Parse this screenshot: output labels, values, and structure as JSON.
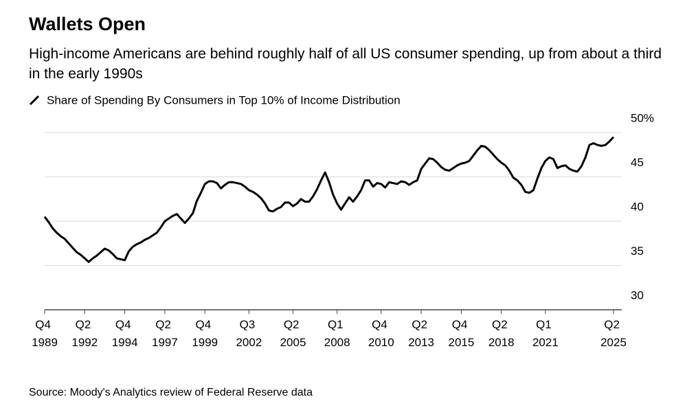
{
  "chart_data": {
    "type": "line",
    "title": "Wallets Open",
    "subtitle": "High-income Americans are behind roughly half of all US consumer spending, up from about a third in the early 1990s",
    "source": "Source: Moody's Analytics review of Federal Reserve data",
    "categories": [
      "Q4 1989",
      null,
      null,
      null,
      null,
      null,
      null,
      null,
      null,
      null,
      "Q2 1992",
      null,
      null,
      null,
      null,
      null,
      null,
      null,
      null,
      null,
      "Q4 1994",
      null,
      null,
      null,
      null,
      null,
      null,
      null,
      null,
      null,
      "Q2 1997",
      null,
      null,
      null,
      null,
      null,
      null,
      null,
      null,
      null,
      "Q4 1999",
      null,
      null,
      null,
      null,
      null,
      null,
      null,
      null,
      null,
      null,
      "Q3 2002",
      null,
      null,
      null,
      null,
      null,
      null,
      null,
      null,
      null,
      null,
      "Q2 2005",
      null,
      null,
      null,
      null,
      null,
      null,
      null,
      null,
      null,
      null,
      "Q1 2008",
      null,
      null,
      null,
      null,
      null,
      null,
      null,
      null,
      null,
      null,
      "Q4 2010",
      null,
      null,
      null,
      null,
      null,
      null,
      null,
      null,
      null,
      "Q2 2013",
      null,
      null,
      null,
      null,
      null,
      null,
      null,
      null,
      null,
      "Q4 2015",
      null,
      null,
      null,
      null,
      null,
      null,
      null,
      null,
      null,
      "Q2 2018",
      null,
      null,
      null,
      null,
      null,
      null,
      null,
      null,
      null,
      null,
      "Q1 2021",
      null,
      null,
      null,
      null,
      null,
      null,
      null,
      null,
      null,
      null,
      null,
      null,
      null,
      null,
      null,
      null,
      "Q2 2025"
    ],
    "series": [
      {
        "name": "Share of Spending By Consumers in Top 10% of Income Distribution",
        "color": "#000000",
        "values": [
          40.5,
          39.9,
          39.2,
          38.7,
          38.3,
          38.0,
          37.5,
          37.0,
          36.5,
          36.2,
          35.8,
          35.4,
          35.8,
          36.1,
          36.5,
          36.9,
          36.7,
          36.3,
          35.8,
          35.7,
          35.6,
          36.6,
          37.1,
          37.4,
          37.6,
          37.9,
          38.1,
          38.4,
          38.7,
          39.3,
          40.0,
          40.3,
          40.6,
          40.8,
          40.3,
          39.8,
          40.3,
          40.9,
          42.3,
          43.2,
          44.2,
          44.5,
          44.5,
          44.3,
          43.7,
          44.1,
          44.4,
          44.4,
          44.3,
          44.2,
          43.9,
          43.5,
          43.3,
          43.0,
          42.6,
          42.0,
          41.2,
          41.1,
          41.4,
          41.6,
          42.1,
          42.1,
          41.7,
          42.0,
          42.5,
          42.2,
          42.2,
          42.8,
          43.6,
          44.6,
          45.5,
          44.4,
          43.0,
          42.0,
          41.3,
          42.0,
          42.7,
          42.2,
          42.8,
          43.5,
          44.6,
          44.6,
          43.9,
          44.3,
          44.2,
          43.8,
          44.4,
          44.3,
          44.2,
          44.5,
          44.4,
          44.1,
          44.4,
          44.6,
          45.9,
          46.5,
          47.1,
          47.0,
          46.6,
          46.1,
          45.8,
          45.7,
          46.0,
          46.3,
          46.5,
          46.6,
          46.8,
          47.4,
          48.0,
          48.5,
          48.4,
          48.0,
          47.5,
          47.0,
          46.6,
          46.3,
          45.7,
          44.9,
          44.6,
          44.1,
          43.3,
          43.2,
          43.5,
          44.8,
          46.0,
          46.8,
          47.2,
          47.0,
          46.0,
          46.2,
          46.3,
          45.9,
          45.7,
          45.6,
          46.2,
          47.2,
          48.6,
          48.8,
          48.6,
          48.5,
          48.6,
          49.0,
          49.5
        ]
      }
    ],
    "ylim": [
      30,
      50
    ],
    "yticks": [
      30,
      35,
      40,
      45,
      {
        "value": 50,
        "label": "50%"
      }
    ],
    "grid": true
  }
}
